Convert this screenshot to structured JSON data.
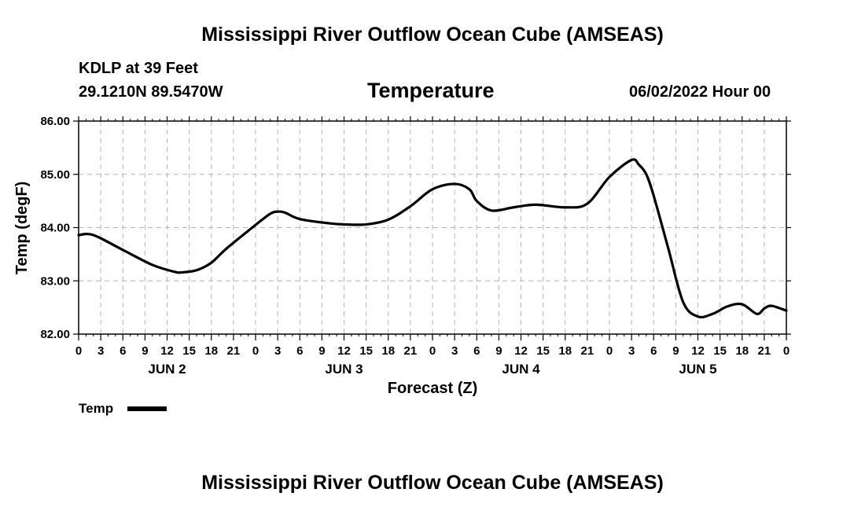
{
  "header": {
    "title": "Mississippi River Outflow Ocean Cube (AMSEAS)",
    "station": "KDLP at 39 Feet",
    "location": "29.1210N  89.5470W",
    "datetime": "06/02/2022 Hour 00"
  },
  "footer": {
    "title": "Mississippi River Outflow Ocean Cube (AMSEAS)"
  },
  "chart_data": {
    "type": "line",
    "title": "Temperature",
    "xlabel": "Forecast (Z)",
    "ylabel": "Temp (degF)",
    "xlim": [
      0,
      96
    ],
    "ylim": [
      82.0,
      86.0
    ],
    "grid": true,
    "yticks": [
      82.0,
      83.0,
      84.0,
      85.0,
      86.0
    ],
    "ytick_labels": [
      "82.00",
      "83.00",
      "84.00",
      "85.00",
      "86.00"
    ],
    "xticks": [
      0,
      3,
      6,
      9,
      12,
      15,
      18,
      21,
      24,
      27,
      30,
      33,
      36,
      39,
      42,
      45,
      48,
      51,
      54,
      57,
      60,
      63,
      66,
      69,
      72,
      75,
      78,
      81,
      84,
      87,
      90,
      93,
      96
    ],
    "xtick_labels": [
      "0",
      "3",
      "6",
      "9",
      "12",
      "15",
      "18",
      "21",
      "0",
      "3",
      "6",
      "9",
      "12",
      "15",
      "18",
      "21",
      "0",
      "3",
      "6",
      "9",
      "12",
      "15",
      "18",
      "21",
      "0",
      "3",
      "6",
      "9",
      "12",
      "15",
      "18",
      "21",
      "0"
    ],
    "day_labels": [
      {
        "label": "JUN 2",
        "hour": 12
      },
      {
        "label": "JUN 3",
        "hour": 36
      },
      {
        "label": "JUN 4",
        "hour": 60
      },
      {
        "label": "JUN 5",
        "hour": 84
      }
    ],
    "legend": {
      "position": "bottom-left",
      "entries": [
        "Temp"
      ]
    },
    "series": [
      {
        "name": "Temp",
        "color": "#000000",
        "x": [
          0,
          2,
          6,
          10,
          13,
          14,
          16,
          18,
          20,
          24,
          26,
          27,
          28,
          30,
          34,
          36,
          39,
          42,
          45,
          48,
          51,
          53,
          54,
          56,
          59,
          62,
          66,
          69,
          72,
          75,
          76,
          77,
          78,
          80,
          82,
          84,
          86,
          88,
          90,
          92,
          93,
          94,
          96
        ],
        "values": [
          83.86,
          83.86,
          83.58,
          83.3,
          83.17,
          83.16,
          83.2,
          83.34,
          83.6,
          84.05,
          84.26,
          84.3,
          84.28,
          84.16,
          84.08,
          84.06,
          84.06,
          84.15,
          84.4,
          84.72,
          84.82,
          84.72,
          84.5,
          84.32,
          84.38,
          84.43,
          84.38,
          84.45,
          84.95,
          85.27,
          85.18,
          85.0,
          84.6,
          83.6,
          82.6,
          82.33,
          82.38,
          82.52,
          82.56,
          82.38,
          82.48,
          82.53,
          82.44
        ]
      }
    ]
  }
}
